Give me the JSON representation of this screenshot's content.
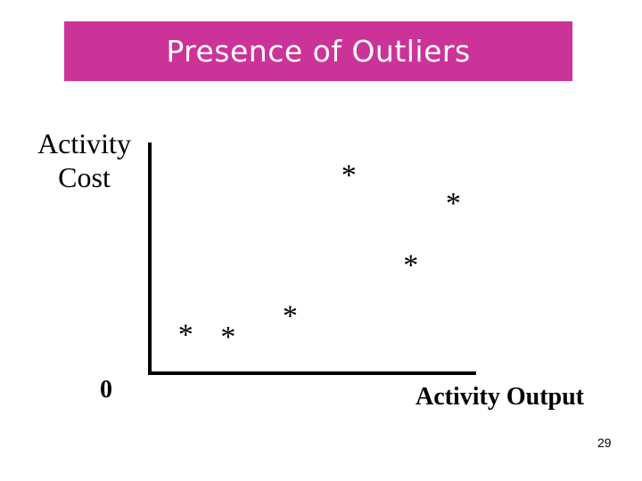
{
  "header": {
    "title": "Presence of Outliers"
  },
  "chart_data": {
    "type": "scatter",
    "title": "Presence of Outliers",
    "xlabel": "Activity Output",
    "ylabel_lines": [
      "Activity",
      "Cost"
    ],
    "origin_label": "0",
    "marker": "*",
    "xlim": [
      0,
      100
    ],
    "ylim": [
      0,
      100
    ],
    "grid": false,
    "points": [
      {
        "x": 11,
        "y": 18
      },
      {
        "x": 24,
        "y": 17
      },
      {
        "x": 43,
        "y": 26
      },
      {
        "x": 61,
        "y": 87
      },
      {
        "x": 80,
        "y": 48
      },
      {
        "x": 93,
        "y": 75
      }
    ]
  },
  "footer": {
    "page_number": "29"
  },
  "colors": {
    "banner": "#cc3399",
    "banner_text": "#ffffff",
    "axis": "#000000"
  }
}
